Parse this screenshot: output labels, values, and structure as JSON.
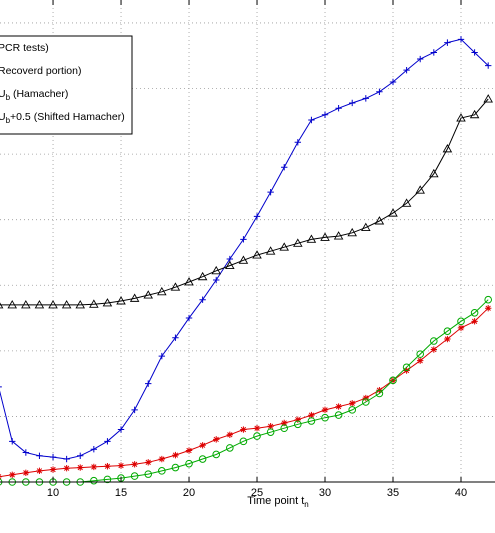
{
  "chart_data": {
    "type": "line",
    "xlabel": "Time point t",
    "xlabel_sub": "n",
    "x_ticks": [
      10,
      15,
      20,
      25,
      30,
      35,
      40
    ],
    "xlim": [
      6.1,
      42.5
    ],
    "ylim": [
      0,
      7.35
    ],
    "grid": true,
    "legend": {
      "placement": "top-left",
      "entries": [
        {
          "prefix": "",
          "sub": "",
          "text": "PCR tests)"
        },
        {
          "prefix": "",
          "sub": "",
          "text": "Recoverd portion)"
        },
        {
          "prefix": "U",
          "sub": "b",
          "text": " (Hamacher)"
        },
        {
          "prefix": "U",
          "sub": "b",
          "text": "+0.5 (Shifted Hamacher)"
        }
      ]
    },
    "x": [
      6,
      7,
      8,
      9,
      10,
      11,
      12,
      13,
      14,
      15,
      16,
      17,
      18,
      19,
      20,
      21,
      22,
      23,
      24,
      25,
      26,
      27,
      28,
      29,
      30,
      31,
      32,
      33,
      34,
      35,
      36,
      37,
      38,
      39,
      40,
      41,
      42
    ],
    "series": [
      {
        "color": "#0000cc",
        "marker": "plus",
        "values": [
          1.45,
          0.62,
          0.45,
          0.4,
          0.38,
          0.35,
          0.4,
          0.5,
          0.62,
          0.8,
          1.1,
          1.5,
          1.92,
          2.2,
          2.5,
          2.78,
          3.08,
          3.4,
          3.7,
          4.05,
          4.42,
          4.8,
          5.18,
          5.52,
          5.6,
          5.7,
          5.78,
          5.85,
          5.95,
          6.1,
          6.28,
          6.45,
          6.55,
          6.7,
          6.75,
          6.55,
          6.35
        ]
      },
      {
        "color": "#000000",
        "marker": "triangle",
        "values": [
          2.7,
          2.7,
          2.7,
          2.7,
          2.7,
          2.7,
          2.7,
          2.71,
          2.73,
          2.76,
          2.8,
          2.85,
          2.9,
          2.97,
          3.05,
          3.13,
          3.22,
          3.3,
          3.38,
          3.46,
          3.52,
          3.58,
          3.64,
          3.7,
          3.73,
          3.75,
          3.8,
          3.88,
          3.98,
          4.1,
          4.25,
          4.45,
          4.7,
          5.08,
          5.55,
          5.6,
          5.84
        ]
      },
      {
        "color": "#dd0000",
        "marker": "star",
        "values": [
          0.08,
          0.11,
          0.14,
          0.17,
          0.19,
          0.21,
          0.22,
          0.23,
          0.24,
          0.25,
          0.27,
          0.3,
          0.35,
          0.41,
          0.48,
          0.56,
          0.65,
          0.72,
          0.8,
          0.82,
          0.85,
          0.9,
          0.95,
          1.02,
          1.1,
          1.15,
          1.2,
          1.28,
          1.4,
          1.55,
          1.7,
          1.85,
          2.02,
          2.18,
          2.35,
          2.45,
          2.65
        ]
      },
      {
        "color": "#00aa00",
        "marker": "circle",
        "values": [
          0,
          0,
          0,
          0,
          0,
          0,
          0,
          0.02,
          0.04,
          0.06,
          0.09,
          0.12,
          0.17,
          0.22,
          0.28,
          0.35,
          0.42,
          0.52,
          0.62,
          0.7,
          0.76,
          0.82,
          0.88,
          0.93,
          0.98,
          1.02,
          1.1,
          1.22,
          1.35,
          1.55,
          1.75,
          1.95,
          2.15,
          2.3,
          2.45,
          2.58,
          2.78
        ]
      }
    ]
  }
}
